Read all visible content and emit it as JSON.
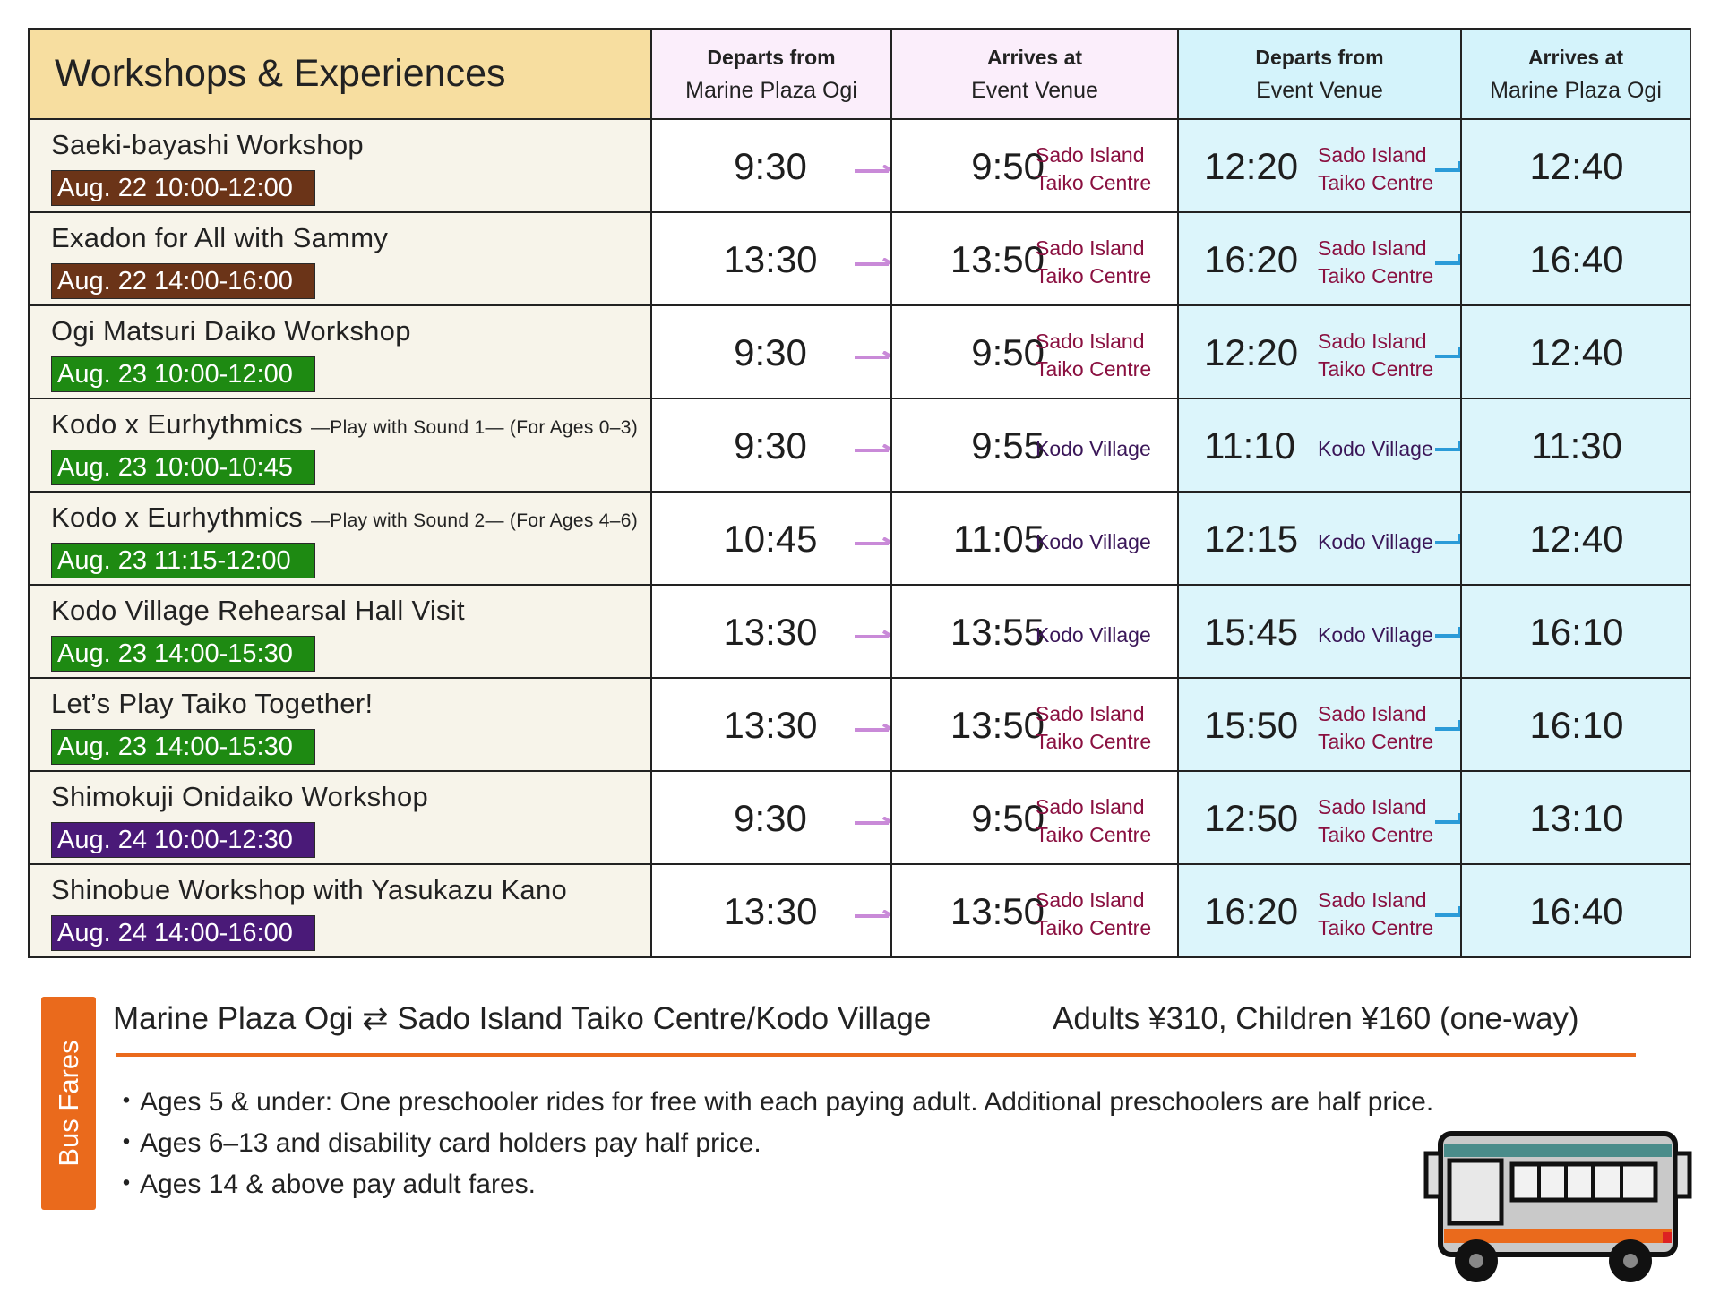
{
  "header": {
    "title": "Workshops & Experiences",
    "col1": {
      "bold": "Departs from",
      "text": "Marine Plaza Ogi"
    },
    "col2": {
      "bold": "Arrives at",
      "text": "Event Venue"
    },
    "col3": {
      "bold": "Departs from",
      "text": "Event Venue"
    },
    "col4": {
      "bold": "Arrives at",
      "text": "Marine Plaza Ogi"
    }
  },
  "colors": {
    "header_main": "#f7dea0",
    "outbound_header": "#fbeefb",
    "return_header": "#d4f3fb",
    "outbound_arrow": "#c98ad8",
    "return_arrow": "#2b9bd8",
    "date_brown": "#6b3418",
    "date_green": "#1e8a12",
    "date_purple": "#4a1a78",
    "fares_accent": "#ea6a1c"
  },
  "rows": [
    {
      "name": "Saeki-bayashi Workshop",
      "sub": "",
      "date": "Aug. 22 10:00-12:00",
      "date_color": "brown",
      "depart": "9:30",
      "arrive": "9:50",
      "venue": [
        "Sado Island",
        "Taiko Centre"
      ],
      "venue_color": "red",
      "return_depart": "12:20",
      "return_venue": [
        "Sado Island",
        "Taiko Centre"
      ],
      "return_arrive": "12:40"
    },
    {
      "name": "Exadon for All with Sammy",
      "sub": "",
      "date": "Aug. 22 14:00-16:00",
      "date_color": "brown",
      "depart": "13:30",
      "arrive": "13:50",
      "venue": [
        "Sado Island",
        "Taiko Centre"
      ],
      "venue_color": "red",
      "return_depart": "16:20",
      "return_venue": [
        "Sado Island",
        "Taiko Centre"
      ],
      "return_arrive": "16:40"
    },
    {
      "name": "Ogi Matsuri Daiko Workshop",
      "sub": "",
      "date": "Aug. 23 10:00-12:00",
      "date_color": "green",
      "depart": "9:30",
      "arrive": "9:50",
      "venue": [
        "Sado Island",
        "Taiko Centre"
      ],
      "venue_color": "red",
      "return_depart": "12:20",
      "return_venue": [
        "Sado Island",
        "Taiko Centre"
      ],
      "return_arrive": "12:40"
    },
    {
      "name": "Kodo x Eurhythmics",
      "sub": "—Play with Sound 1— (For Ages 0–3)",
      "date": "Aug. 23 10:00-10:45",
      "date_color": "green",
      "depart": "9:30",
      "arrive": "9:55",
      "venue": [
        "Kodo Village"
      ],
      "venue_color": "purple",
      "return_depart": "11:10",
      "return_venue": [
        "Kodo Village"
      ],
      "return_arrive": "11:30"
    },
    {
      "name": "Kodo x Eurhythmics",
      "sub": "—Play with Sound 2— (For Ages 4–6)",
      "date": "Aug. 23 11:15-12:00",
      "date_color": "green",
      "depart": "10:45",
      "arrive": "11:05",
      "venue": [
        "Kodo Village"
      ],
      "venue_color": "purple",
      "return_depart": "12:15",
      "return_venue": [
        "Kodo Village"
      ],
      "return_arrive": "12:40"
    },
    {
      "name": "Kodo Village Rehearsal Hall Visit",
      "sub": "",
      "date": "Aug. 23 14:00-15:30",
      "date_color": "green",
      "depart": "13:30",
      "arrive": "13:55",
      "venue": [
        "Kodo Village"
      ],
      "venue_color": "purple",
      "return_depart": "15:45",
      "return_venue": [
        "Kodo Village"
      ],
      "return_arrive": "16:10"
    },
    {
      "name": "Let’s Play Taiko Together!",
      "sub": "",
      "date": "Aug. 23 14:00-15:30",
      "date_color": "green",
      "depart": "13:30",
      "arrive": "13:50",
      "venue": [
        "Sado Island",
        "Taiko Centre"
      ],
      "venue_color": "red",
      "return_depart": "15:50",
      "return_venue": [
        "Sado Island",
        "Taiko Centre"
      ],
      "return_arrive": "16:10"
    },
    {
      "name": "Shimokuji Onidaiko Workshop",
      "sub": "",
      "date": "Aug. 24 10:00-12:30",
      "date_color": "purple",
      "depart": "9:30",
      "arrive": "9:50",
      "venue": [
        "Sado Island",
        "Taiko Centre"
      ],
      "venue_color": "red",
      "return_depart": "12:50",
      "return_venue": [
        "Sado Island",
        "Taiko Centre"
      ],
      "return_arrive": "13:10"
    },
    {
      "name": "Shinobue Workshop with Yasukazu Kano",
      "sub": "",
      "date": "Aug. 24 14:00-16:00",
      "date_color": "purple",
      "depart": "13:30",
      "arrive": "13:50",
      "venue": [
        "Sado Island",
        "Taiko Centre"
      ],
      "venue_color": "red",
      "return_depart": "16:20",
      "return_venue": [
        "Sado Island",
        "Taiko Centre"
      ],
      "return_arrive": "16:40"
    }
  ],
  "fares": {
    "tab_label": "Bus Fares",
    "route": "Marine Plaza Ogi ⇄ Sado Island Taiko Centre/Kodo Village",
    "price": "Adults ¥310,  Children ¥160 (one-way)",
    "notes": [
      "Ages 5 & under: One preschooler rides for free with each paying adult. Additional preschoolers are half price.",
      "Ages 6–13 and disability card holders pay half price.",
      "Ages 14 & above pay adult fares."
    ],
    "illustration": "bus-illustration"
  }
}
